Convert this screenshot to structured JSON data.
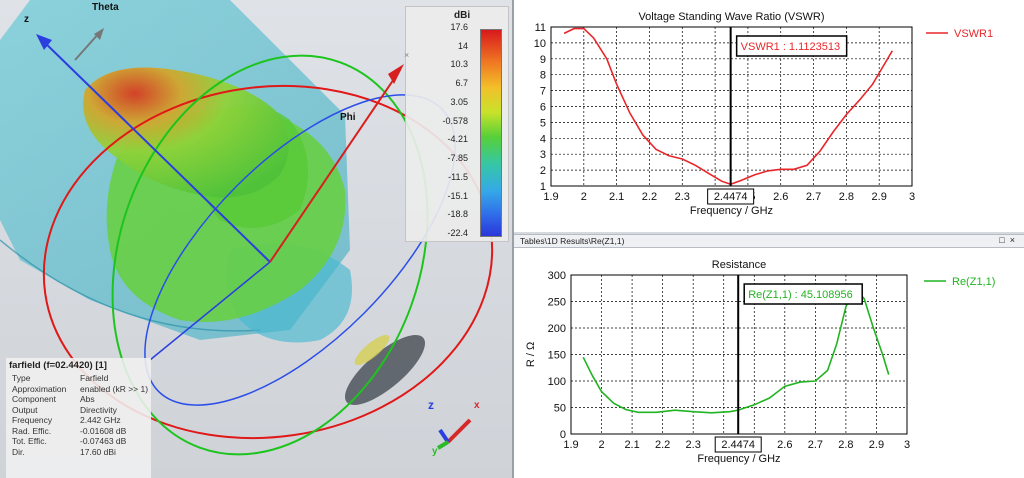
{
  "view3d": {
    "axis_labels": {
      "z": "z",
      "theta": "Theta",
      "phi": "Phi",
      "cs_z": "z",
      "cs_x": "x",
      "cs_y": "y"
    },
    "colorbar": {
      "unit": "dBi",
      "ticks": [
        "17.6",
        "14",
        "10.3",
        "6.7",
        "3.05",
        "-0.578",
        "-4.21",
        "-7.85",
        "-11.5",
        "-15.1",
        "-18.8",
        "-22.4"
      ],
      "close_icon": "close-icon"
    },
    "info": {
      "title": "farfield (f=02.4420) [1]",
      "rows": [
        {
          "k": "Type",
          "v": "Farfield"
        },
        {
          "k": "Approximation",
          "v": "enabled (kR >> 1)"
        },
        {
          "k": "Component",
          "v": "Abs"
        },
        {
          "k": "Output",
          "v": "Directivity"
        },
        {
          "k": "Frequency",
          "v": "2.442 GHz"
        },
        {
          "k": "Rad. Effic.",
          "v": "-0.01608 dB"
        },
        {
          "k": "Tot. Effic.",
          "v": "-0.07463 dB"
        },
        {
          "k": "Dir.",
          "v": "17.60 dBi"
        }
      ]
    }
  },
  "tabbar": {
    "title": "Tables\\1D Results\\Re(Z1,1)",
    "buttons": [
      "□",
      "×"
    ]
  },
  "chart_data": [
    {
      "type": "line",
      "title": "Voltage Standing Wave Ratio (VSWR)",
      "xlabel": "Frequency / GHz",
      "ylabel": "",
      "xlim": [
        1.9,
        3
      ],
      "ylim": [
        1,
        11
      ],
      "xticks": [
        "1.9",
        "2",
        "2.1",
        "2.2",
        "2.3",
        "2.4",
        "2.5",
        "2.6",
        "2.7",
        "2.8",
        "2.9",
        "3"
      ],
      "yticks": [
        "1",
        "2",
        "3",
        "4",
        "5",
        "6",
        "7",
        "8",
        "9",
        "10",
        "11"
      ],
      "grid": true,
      "legend": "top-right",
      "series": [
        {
          "name": "VSWR1",
          "color": "#e8262a",
          "x": [
            1.94,
            1.97,
            2.0,
            2.03,
            2.07,
            2.1,
            2.14,
            2.18,
            2.22,
            2.26,
            2.3,
            2.34,
            2.38,
            2.42,
            2.4474,
            2.48,
            2.52,
            2.56,
            2.6,
            2.64,
            2.68,
            2.72,
            2.76,
            2.8,
            2.84,
            2.88,
            2.92,
            2.94
          ],
          "values": [
            10.6,
            10.9,
            10.9,
            10.3,
            9.0,
            7.4,
            5.6,
            4.2,
            3.3,
            2.9,
            2.7,
            2.3,
            1.8,
            1.3,
            1.11,
            1.35,
            1.7,
            1.95,
            2.05,
            2.05,
            2.3,
            3.2,
            4.4,
            5.5,
            6.4,
            7.4,
            8.8,
            9.5
          ]
        }
      ],
      "marker": {
        "x": 2.4474,
        "x_label": "2.4474",
        "value_label": "VSWR1 : 1.1123513"
      }
    },
    {
      "type": "line",
      "title": "Resistance",
      "xlabel": "Frequency / GHz",
      "ylabel": "R / Ω",
      "xlim": [
        1.9,
        3
      ],
      "ylim": [
        0,
        300
      ],
      "xticks": [
        "1.9",
        "2",
        "2.1",
        "2.2",
        "2.3",
        "2.4",
        "2.5",
        "2.6",
        "2.7",
        "2.8",
        "2.9",
        "3"
      ],
      "yticks": [
        "0",
        "50",
        "100",
        "150",
        "200",
        "250",
        "300"
      ],
      "grid": true,
      "legend": "top-right",
      "series": [
        {
          "name": "Re(Z1,1)",
          "color": "#21b421",
          "x": [
            1.94,
            1.97,
            2.0,
            2.04,
            2.08,
            2.12,
            2.18,
            2.24,
            2.3,
            2.36,
            2.42,
            2.4474,
            2.5,
            2.55,
            2.6,
            2.65,
            2.7,
            2.74,
            2.77,
            2.8,
            2.83,
            2.86,
            2.89,
            2.92,
            2.94
          ],
          "values": [
            145,
            110,
            80,
            58,
            46,
            41,
            41,
            45,
            42,
            40,
            42,
            45.1,
            55,
            68,
            90,
            98,
            100,
            120,
            170,
            240,
            275,
            255,
            200,
            150,
            112
          ]
        }
      ],
      "marker": {
        "x": 2.4474,
        "x_label": "2.4474",
        "value_label": "Re(Z1,1) : 45.108956"
      }
    }
  ]
}
